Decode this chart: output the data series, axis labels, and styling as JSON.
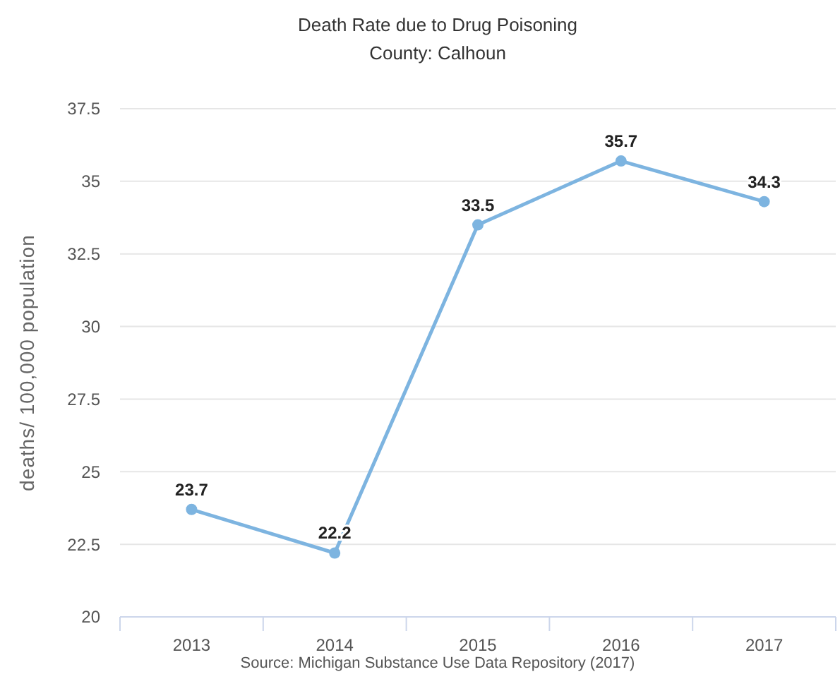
{
  "chart_data": {
    "type": "line",
    "title": "Death Rate due to Drug Poisoning",
    "subtitle": "County: Calhoun",
    "ylabel": "deaths/ 100,000 population",
    "categories": [
      "2013",
      "2014",
      "2015",
      "2016",
      "2017"
    ],
    "series": [
      {
        "color": "#7db4e0",
        "values": [
          23.7,
          22.2,
          33.5,
          35.7,
          34.3
        ]
      }
    ],
    "ylim": [
      20,
      37.5
    ],
    "yticks": [
      20,
      22.5,
      25,
      27.5,
      30,
      32.5,
      35,
      37.5
    ],
    "grid": "y",
    "marker": "circle",
    "data_labels": true,
    "annotations": [
      "Source: Michigan Substance Use Data Repository (2017)"
    ]
  }
}
